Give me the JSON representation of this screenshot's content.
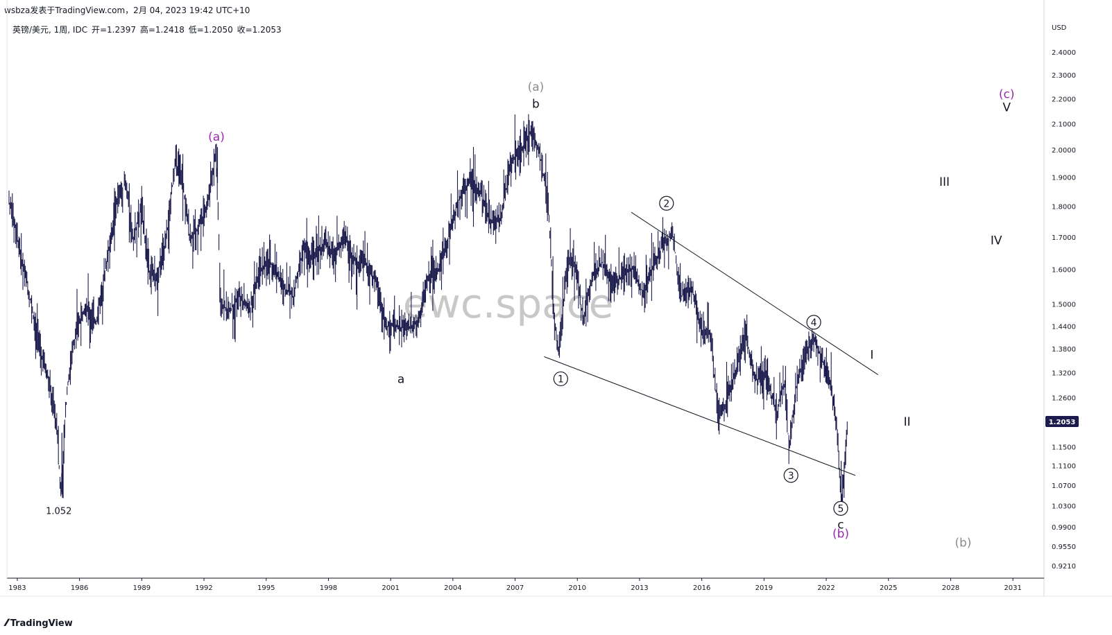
{
  "header": {
    "publisher": "wsbza发表于TradingView.com，2月 04, 2023 19:42 UTC+10"
  },
  "ohlc": {
    "symbol": "英镑/美元, 1周, IDC",
    "open": "开=1.2397",
    "high": "高=1.2418",
    "low": "低=1.2050",
    "close": "收=1.2053"
  },
  "watermark": "ewc.space",
  "branding": "TradingView",
  "colors": {
    "candle": "#1c1b4d",
    "purple": "#9c27b0",
    "gray": "#8c8c8c",
    "price_tag": "#1c1b4d"
  },
  "chart_data": {
    "type": "line",
    "ylabel": "USD",
    "log_scale": true,
    "ylim": [
      0.9,
      2.55
    ],
    "xlim": [
      1982.5,
      2032.5
    ],
    "y_ticks": [
      "2.4000",
      "2.3000",
      "2.2000",
      "2.1000",
      "2.0000",
      "1.9000",
      "1.8000",
      "1.7000",
      "1.6000",
      "1.5000",
      "1.4400",
      "1.3800",
      "1.3200",
      "1.2600",
      "1.1500",
      "1.1100",
      "1.0700",
      "1.0300",
      "0.9900",
      "0.9550",
      "0.9210"
    ],
    "x_ticks": [
      "1983",
      "1986",
      "1989",
      "1992",
      "1995",
      "1998",
      "2001",
      "2004",
      "2007",
      "2010",
      "2013",
      "2016",
      "2019",
      "2022",
      "2025",
      "2028",
      "2031"
    ],
    "last_price": "1.2053",
    "series": [
      {
        "values": [
          [
            1982.6,
            1.82
          ],
          [
            1983.0,
            1.7
          ],
          [
            1983.5,
            1.55
          ],
          [
            1984.0,
            1.4
          ],
          [
            1984.5,
            1.3
          ],
          [
            1984.9,
            1.2
          ],
          [
            1985.1,
            1.052
          ],
          [
            1985.4,
            1.28
          ],
          [
            1985.8,
            1.42
          ],
          [
            1986.3,
            1.5
          ],
          [
            1986.8,
            1.45
          ],
          [
            1987.3,
            1.62
          ],
          [
            1987.8,
            1.82
          ],
          [
            1988.2,
            1.88
          ],
          [
            1988.6,
            1.7
          ],
          [
            1989.0,
            1.8
          ],
          [
            1989.3,
            1.6
          ],
          [
            1989.7,
            1.58
          ],
          [
            1990.2,
            1.7
          ],
          [
            1990.6,
            1.95
          ],
          [
            1990.9,
            1.92
          ],
          [
            1991.3,
            1.7
          ],
          [
            1991.7,
            1.72
          ],
          [
            1992.2,
            1.82
          ],
          [
            1992.6,
            2.0
          ],
          [
            1992.8,
            1.5
          ],
          [
            1993.2,
            1.48
          ],
          [
            1993.7,
            1.52
          ],
          [
            1994.2,
            1.48
          ],
          [
            1994.7,
            1.6
          ],
          [
            1995.2,
            1.62
          ],
          [
            1995.8,
            1.55
          ],
          [
            1996.3,
            1.52
          ],
          [
            1996.8,
            1.66
          ],
          [
            1997.3,
            1.63
          ],
          [
            1997.8,
            1.68
          ],
          [
            1998.3,
            1.64
          ],
          [
            1998.8,
            1.7
          ],
          [
            1999.3,
            1.62
          ],
          [
            1999.8,
            1.62
          ],
          [
            2000.3,
            1.56
          ],
          [
            2000.8,
            1.44
          ],
          [
            2001.3,
            1.44
          ],
          [
            2001.8,
            1.43
          ],
          [
            2002.3,
            1.45
          ],
          [
            2002.8,
            1.57
          ],
          [
            2003.3,
            1.6
          ],
          [
            2003.8,
            1.7
          ],
          [
            2004.3,
            1.83
          ],
          [
            2004.8,
            1.88
          ],
          [
            2005.3,
            1.85
          ],
          [
            2005.8,
            1.75
          ],
          [
            2006.3,
            1.76
          ],
          [
            2006.8,
            1.95
          ],
          [
            2007.3,
            2.0
          ],
          [
            2007.8,
            2.07
          ],
          [
            2008.2,
            1.98
          ],
          [
            2008.6,
            1.8
          ],
          [
            2008.9,
            1.45
          ],
          [
            2009.1,
            1.37
          ],
          [
            2009.5,
            1.62
          ],
          [
            2009.9,
            1.62
          ],
          [
            2010.3,
            1.45
          ],
          [
            2010.7,
            1.58
          ],
          [
            2011.2,
            1.62
          ],
          [
            2011.7,
            1.55
          ],
          [
            2012.2,
            1.58
          ],
          [
            2012.7,
            1.61
          ],
          [
            2013.2,
            1.52
          ],
          [
            2013.7,
            1.62
          ],
          [
            2014.2,
            1.68
          ],
          [
            2014.6,
            1.71
          ],
          [
            2015.0,
            1.52
          ],
          [
            2015.5,
            1.55
          ],
          [
            2016.0,
            1.42
          ],
          [
            2016.4,
            1.42
          ],
          [
            2016.8,
            1.22
          ],
          [
            2017.2,
            1.25
          ],
          [
            2017.7,
            1.33
          ],
          [
            2018.1,
            1.42
          ],
          [
            2018.6,
            1.3
          ],
          [
            2019.1,
            1.32
          ],
          [
            2019.6,
            1.22
          ],
          [
            2020.0,
            1.3
          ],
          [
            2020.2,
            1.15
          ],
          [
            2020.6,
            1.3
          ],
          [
            2021.0,
            1.37
          ],
          [
            2021.4,
            1.41
          ],
          [
            2021.9,
            1.34
          ],
          [
            2022.2,
            1.3
          ],
          [
            2022.5,
            1.2
          ],
          [
            2022.75,
            1.035
          ],
          [
            2022.9,
            1.12
          ],
          [
            2023.05,
            1.2053
          ]
        ]
      }
    ],
    "trendlines": [
      {
        "from": [
          2008.4,
          1.36
        ],
        "to": [
          2023.4,
          1.09
        ]
      },
      {
        "from": [
          2012.6,
          1.78
        ],
        "to": [
          2024.5,
          1.315
        ]
      }
    ],
    "annotations": [
      {
        "text": "1.052",
        "x": 1985.0,
        "y": 1.022,
        "color": "#131722",
        "circled": false
      },
      {
        "text": "(a)",
        "x": 1992.6,
        "y": 2.05,
        "color": "#9c27b0",
        "circled": false
      },
      {
        "text": "a",
        "x": 2001.5,
        "y": 1.305,
        "color": "#131722",
        "circled": false
      },
      {
        "text": "(a)",
        "x": 2008.0,
        "y": 2.25,
        "color": "#8c8c8c",
        "circled": false
      },
      {
        "text": "b",
        "x": 2008.0,
        "y": 2.18,
        "color": "#131722",
        "circled": false
      },
      {
        "text": "1",
        "x": 2009.2,
        "y": 1.305,
        "color": "#131722",
        "circled": true
      },
      {
        "text": "2",
        "x": 2014.3,
        "y": 1.81,
        "color": "#131722",
        "circled": true
      },
      {
        "text": "3",
        "x": 2020.3,
        "y": 1.09,
        "color": "#131722",
        "circled": true
      },
      {
        "text": "4",
        "x": 2021.4,
        "y": 1.45,
        "color": "#131722",
        "circled": true
      },
      {
        "text": "5",
        "x": 2022.7,
        "y": 1.025,
        "color": "#131722",
        "circled": true
      },
      {
        "text": "c",
        "x": 2022.7,
        "y": 0.995,
        "color": "#131722",
        "circled": false
      },
      {
        "text": "(b)",
        "x": 2022.7,
        "y": 0.978,
        "color": "#9c27b0",
        "circled": false
      },
      {
        "text": "I",
        "x": 2024.2,
        "y": 1.365,
        "color": "#131722",
        "circled": false
      },
      {
        "text": "II",
        "x": 2025.9,
        "y": 1.205,
        "color": "#131722",
        "circled": false
      },
      {
        "text": "III",
        "x": 2027.7,
        "y": 1.885,
        "color": "#131722",
        "circled": false
      },
      {
        "text": "IV",
        "x": 2030.2,
        "y": 1.69,
        "color": "#131722",
        "circled": false
      },
      {
        "text": "V",
        "x": 2030.7,
        "y": 2.165,
        "color": "#131722",
        "circled": false
      },
      {
        "text": "(c)",
        "x": 2030.7,
        "y": 2.22,
        "color": "#9c27b0",
        "circled": false
      },
      {
        "text": "(b)",
        "x": 2028.6,
        "y": 0.962,
        "color": "#8c8c8c",
        "circled": false
      }
    ]
  }
}
